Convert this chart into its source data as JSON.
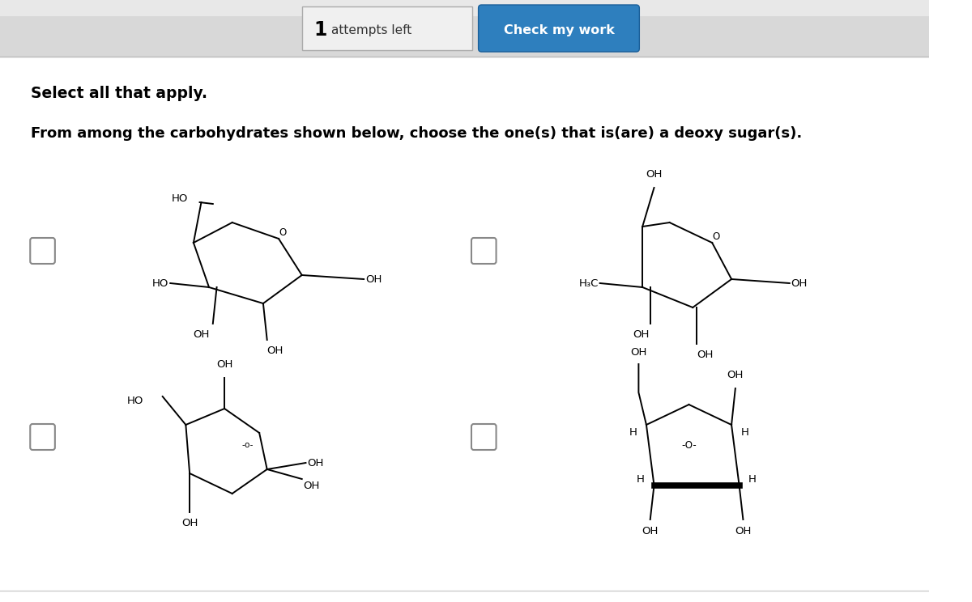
{
  "bg_color": "#f5f5f5",
  "main_bg": "#ffffff",
  "header_bg_top": "#e0e0e0",
  "header_bg_bot": "#c8c8c8",
  "button_color": "#2e7fbe",
  "button_text": "Check my work",
  "attempts_num": "1",
  "attempts_rest": " attempts left",
  "select_text": "Select all that apply.",
  "question_text": "From among the carbohydrates shown below, choose the one(s) that is(are) a deoxy sugar(s).",
  "chem_fontsize": 9.5,
  "small_fontsize": 8.5,
  "lw": 1.4
}
